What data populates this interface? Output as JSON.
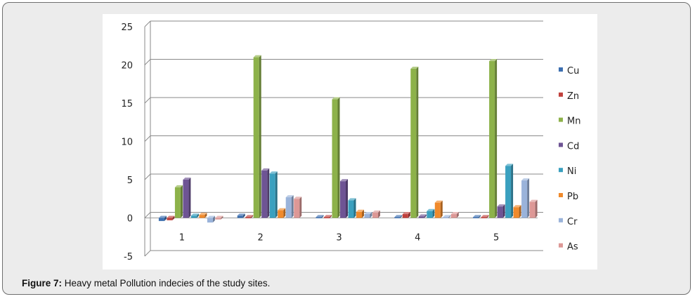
{
  "caption": {
    "label": "Figure 7:",
    "text": "Heavy metal Pollution indecies of the study sites."
  },
  "chart_data": {
    "type": "bar",
    "title": "",
    "xlabel": "",
    "ylabel": "",
    "categories": [
      "1",
      "2",
      "3",
      "4",
      "5"
    ],
    "ylim": [
      -5,
      25
    ],
    "yticks": [
      -5,
      0,
      5,
      10,
      15,
      20,
      25
    ],
    "grid": true,
    "legend": "right",
    "series": [
      {
        "name": "Cu",
        "color": "#3c6fb0",
        "values": [
          -0.4,
          0.3,
          0.1,
          0.1,
          0.1
        ]
      },
      {
        "name": "Zn",
        "color": "#c0403c",
        "values": [
          -0.3,
          0.1,
          0.1,
          0.5,
          0.1
        ]
      },
      {
        "name": "Mn",
        "color": "#8db24a",
        "values": [
          4.0,
          21.0,
          15.5,
          19.5,
          20.5
        ]
      },
      {
        "name": "Cd",
        "color": "#6e5494",
        "values": [
          5.0,
          6.2,
          4.8,
          0.2,
          1.5
        ]
      },
      {
        "name": "Ni",
        "color": "#3aa0bf",
        "values": [
          0.3,
          5.8,
          2.3,
          0.9,
          6.8
        ]
      },
      {
        "name": "Pb",
        "color": "#f08a2c",
        "values": [
          0.4,
          1.0,
          0.8,
          2.0,
          1.4
        ]
      },
      {
        "name": "Cr",
        "color": "#9ab3da",
        "values": [
          -0.6,
          2.7,
          0.5,
          0.1,
          4.9
        ]
      },
      {
        "name": "As",
        "color": "#dd9896",
        "values": [
          -0.2,
          2.5,
          0.7,
          0.5,
          2.1
        ]
      }
    ]
  }
}
